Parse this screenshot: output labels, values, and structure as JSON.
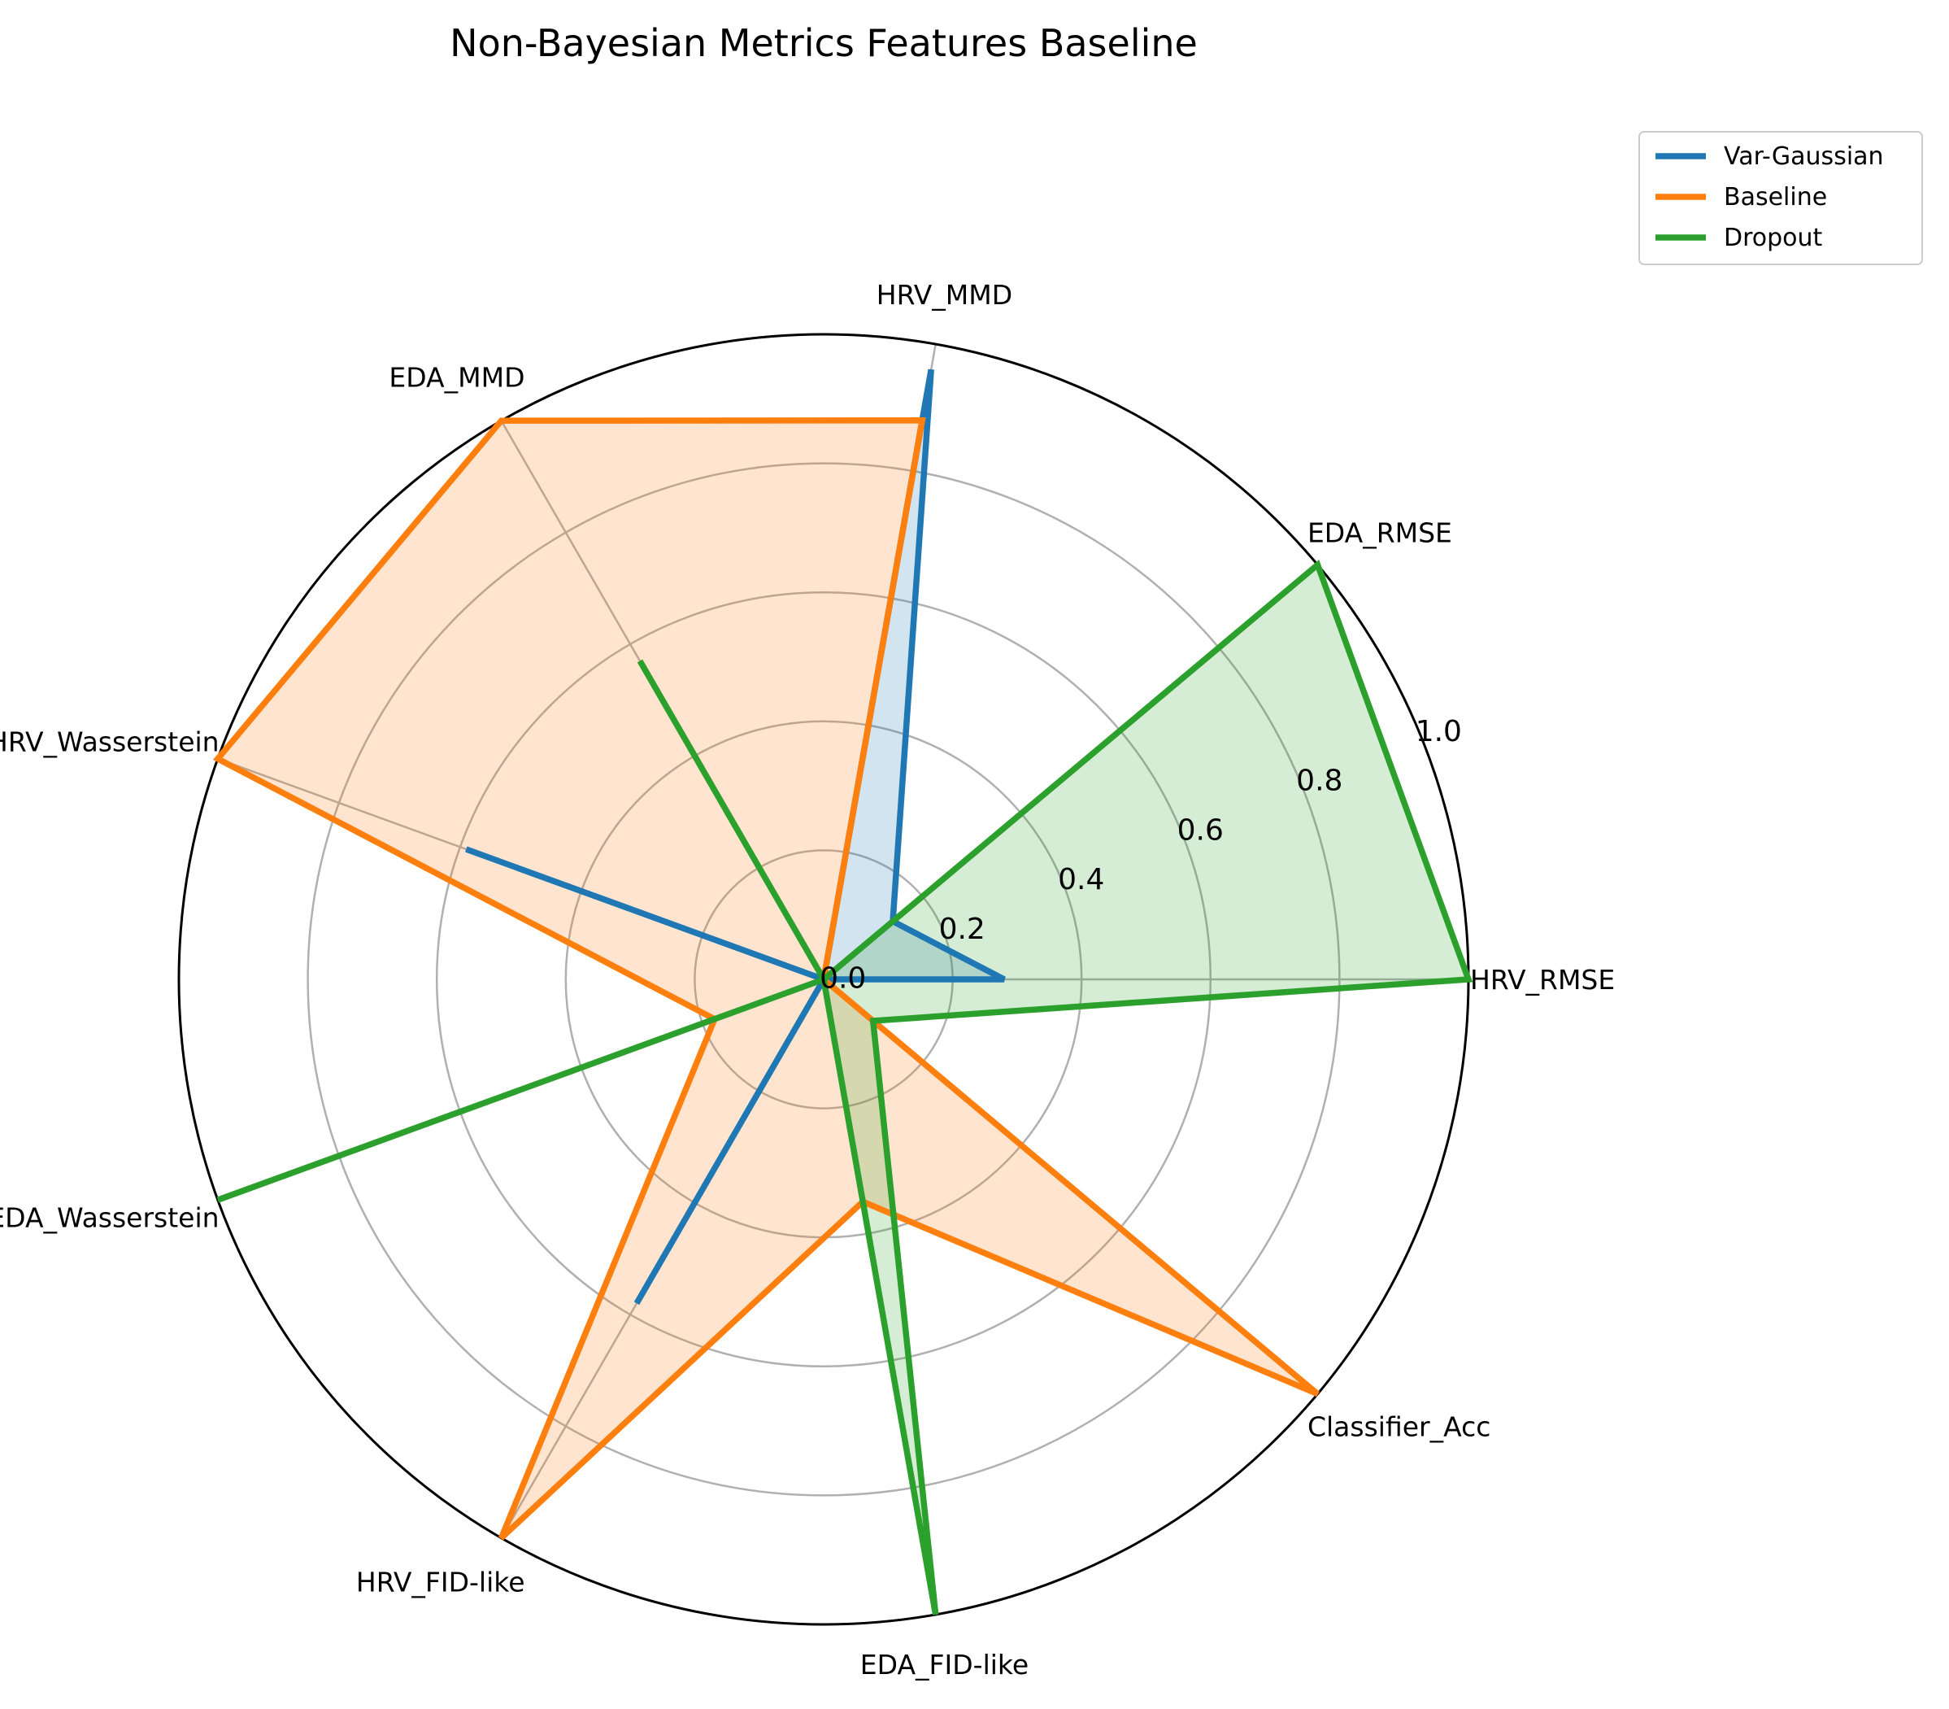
{
  "chart_data": {
    "type": "radar",
    "title": "Non-Bayesian Metrics Features Baseline",
    "categories": [
      "HRV_RMSE",
      "EDA_RMSE",
      "HRV_MMD",
      "EDA_MMD",
      "HRV_Wasserstein",
      "EDA_Wasserstein",
      "HRV_FID-like",
      "EDA_FID-like",
      "Classifier_Acc"
    ],
    "rlim": [
      0,
      1.0
    ],
    "rticks": [
      "0.0",
      "0.2",
      "0.4",
      "0.6",
      "0.8",
      "1.0"
    ],
    "grid": true,
    "legend_position": "top-right, outside",
    "series": [
      {
        "name": "Var-Gaussian",
        "color": "#1f77b4",
        "values": [
          0.28,
          0.14,
          0.96,
          0.0,
          0.59,
          0.0,
          0.58,
          0.0,
          0.0
        ]
      },
      {
        "name": "Baseline",
        "color": "#ff7f0e",
        "values": [
          0.0,
          0.0,
          0.88,
          1.0,
          1.0,
          0.18,
          1.0,
          0.35,
          1.0
        ]
      },
      {
        "name": "Dropout",
        "color": "#2ca02c",
        "values": [
          1.0,
          1.0,
          0.0,
          0.57,
          0.0,
          1.0,
          0.0,
          1.0,
          0.1
        ]
      }
    ]
  }
}
